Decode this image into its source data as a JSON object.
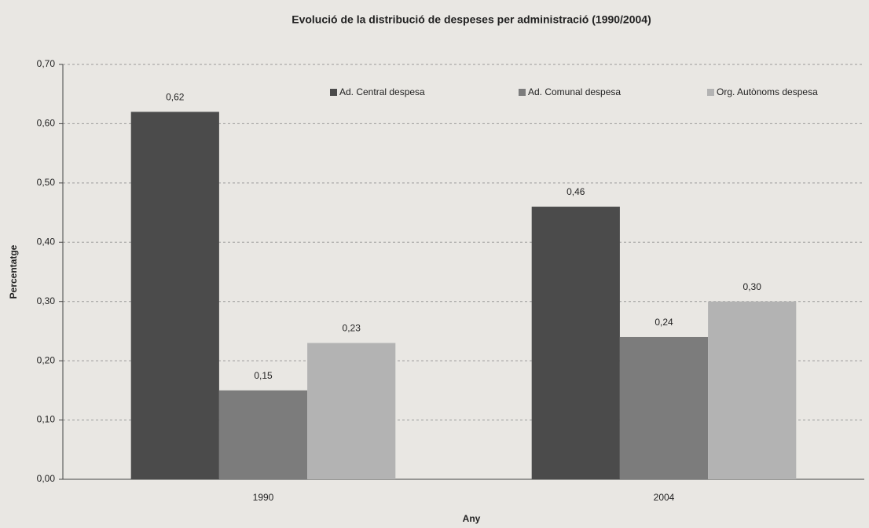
{
  "chart_data": {
    "type": "bar",
    "title": "Evolució de la distribució de despeses per administració (1990/2004)",
    "x_label": "Any",
    "y_label": "Percentatge",
    "categories": [
      "1990",
      "2004"
    ],
    "series": [
      {
        "name": "Ad. Central despesa",
        "color": "#4b4b4b",
        "values": [
          0.62,
          0.46
        ],
        "value_labels": [
          "0,62",
          "0,46"
        ]
      },
      {
        "name": "Ad. Comunal despesa",
        "color": "#7c7c7c",
        "values": [
          0.15,
          0.24
        ],
        "value_labels": [
          "0,15",
          "0,24"
        ]
      },
      {
        "name": "Org. Autònoms despesa",
        "color": "#b3b3b3",
        "values": [
          0.23,
          0.3
        ],
        "value_labels": [
          "0,23",
          "0,30"
        ]
      }
    ],
    "ylim": [
      0,
      0.7
    ],
    "yticks": [
      {
        "value": 0,
        "label": "0,00"
      },
      {
        "value": 0.1,
        "label": "0,10"
      },
      {
        "value": 0.2,
        "label": "0,20"
      },
      {
        "value": 0.3,
        "label": "0,30"
      },
      {
        "value": 0.4,
        "label": "0,40"
      },
      {
        "value": 0.5,
        "label": "0,50"
      },
      {
        "value": 0.6,
        "label": "0,60"
      },
      {
        "value": 0.7,
        "label": "0,70"
      }
    ],
    "grid": true,
    "legend": "top"
  }
}
